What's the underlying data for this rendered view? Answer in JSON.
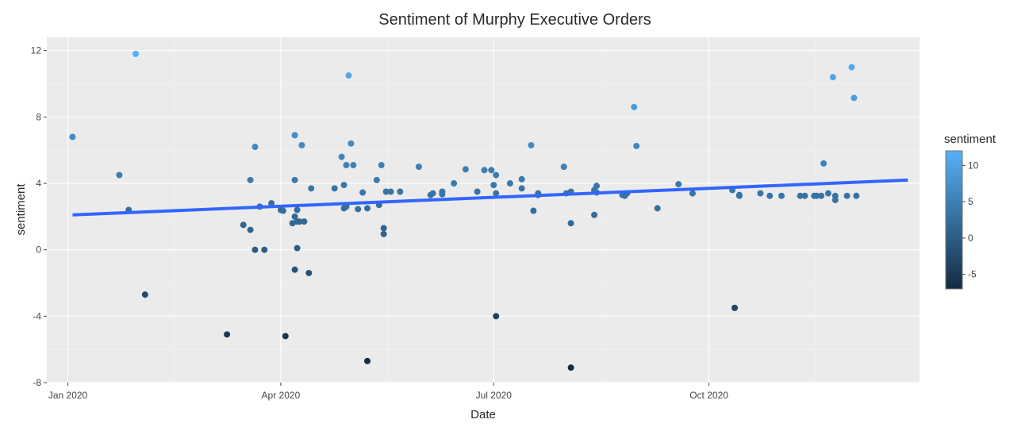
{
  "chart_data": {
    "type": "scatter",
    "title": "Sentiment of Murphy Executive Orders",
    "xlabel": "Date",
    "ylabel": "sentiment",
    "x_ticks": [
      {
        "date": "2020-01-01",
        "label": "Jan 2020"
      },
      {
        "date": "2020-04-01",
        "label": "Apr 2020"
      },
      {
        "date": "2020-07-01",
        "label": "Jul 2020"
      },
      {
        "date": "2020-10-01",
        "label": "Oct 2020"
      }
    ],
    "xlim": [
      "2019-12-23",
      "2020-12-30"
    ],
    "y_ticks": [
      12,
      8,
      4,
      0,
      -4,
      -8
    ],
    "ylim": [
      -8,
      12.8
    ],
    "grid": true,
    "colorbar": {
      "title": "sentiment",
      "ticks": [
        10,
        5,
        0,
        -5
      ],
      "range": [
        -7,
        12
      ],
      "color_low": "#132b43",
      "color_high": "#56b1f7"
    },
    "trend_line": {
      "color": "#3366ff",
      "start": {
        "date": "2020-01-03",
        "value": 2.1
      },
      "end": {
        "date": "2020-12-25",
        "value": 4.2
      }
    },
    "points": [
      {
        "date": "2020-01-03",
        "value": 6.8
      },
      {
        "date": "2020-01-23",
        "value": 4.5
      },
      {
        "date": "2020-01-27",
        "value": 2.4
      },
      {
        "date": "2020-01-30",
        "value": 11.8
      },
      {
        "date": "2020-02-03",
        "value": -2.7
      },
      {
        "date": "2020-03-09",
        "value": -5.1
      },
      {
        "date": "2020-03-16",
        "value": 1.5
      },
      {
        "date": "2020-03-19",
        "value": 1.2
      },
      {
        "date": "2020-03-19",
        "value": 4.2
      },
      {
        "date": "2020-03-21",
        "value": 6.2
      },
      {
        "date": "2020-03-21",
        "value": 0.0
      },
      {
        "date": "2020-03-23",
        "value": 2.6
      },
      {
        "date": "2020-03-25",
        "value": 0.0
      },
      {
        "date": "2020-03-28",
        "value": 2.8
      },
      {
        "date": "2020-04-01",
        "value": 2.4
      },
      {
        "date": "2020-04-02",
        "value": 2.35
      },
      {
        "date": "2020-04-03",
        "value": -5.2
      },
      {
        "date": "2020-04-06",
        "value": 1.6
      },
      {
        "date": "2020-04-07",
        "value": 6.9
      },
      {
        "date": "2020-04-07",
        "value": 4.2
      },
      {
        "date": "2020-04-07",
        "value": 2.0
      },
      {
        "date": "2020-04-07",
        "value": -1.2
      },
      {
        "date": "2020-04-08",
        "value": 2.4
      },
      {
        "date": "2020-04-08",
        "value": 1.7
      },
      {
        "date": "2020-04-08",
        "value": 0.1
      },
      {
        "date": "2020-04-09",
        "value": 1.7
      },
      {
        "date": "2020-04-10",
        "value": 6.3
      },
      {
        "date": "2020-04-11",
        "value": 1.7
      },
      {
        "date": "2020-04-13",
        "value": -1.4
      },
      {
        "date": "2020-04-14",
        "value": 3.7
      },
      {
        "date": "2020-04-24",
        "value": 3.7
      },
      {
        "date": "2020-04-27",
        "value": 5.6
      },
      {
        "date": "2020-04-28",
        "value": 3.9
      },
      {
        "date": "2020-04-28",
        "value": 2.5
      },
      {
        "date": "2020-04-29",
        "value": 5.1
      },
      {
        "date": "2020-04-29",
        "value": 2.6
      },
      {
        "date": "2020-04-30",
        "value": 10.5
      },
      {
        "date": "2020-05-01",
        "value": 6.4
      },
      {
        "date": "2020-05-02",
        "value": 5.1
      },
      {
        "date": "2020-05-04",
        "value": 2.45
      },
      {
        "date": "2020-05-06",
        "value": 3.45
      },
      {
        "date": "2020-05-08",
        "value": 2.5
      },
      {
        "date": "2020-05-08",
        "value": -6.7
      },
      {
        "date": "2020-05-12",
        "value": 4.2
      },
      {
        "date": "2020-05-13",
        "value": 2.7
      },
      {
        "date": "2020-05-14",
        "value": 5.1
      },
      {
        "date": "2020-05-15",
        "value": 1.3
      },
      {
        "date": "2020-05-15",
        "value": 0.95
      },
      {
        "date": "2020-05-16",
        "value": 3.5
      },
      {
        "date": "2020-05-18",
        "value": 3.5
      },
      {
        "date": "2020-05-22",
        "value": 3.5
      },
      {
        "date": "2020-05-30",
        "value": 5.0
      },
      {
        "date": "2020-06-04",
        "value": 3.3
      },
      {
        "date": "2020-06-05",
        "value": 3.4
      },
      {
        "date": "2020-06-09",
        "value": 3.5
      },
      {
        "date": "2020-06-09",
        "value": 3.35
      },
      {
        "date": "2020-06-14",
        "value": 4.0
      },
      {
        "date": "2020-06-19",
        "value": 4.85
      },
      {
        "date": "2020-06-24",
        "value": 3.5
      },
      {
        "date": "2020-06-27",
        "value": 4.8
      },
      {
        "date": "2020-06-30",
        "value": 4.8
      },
      {
        "date": "2020-07-01",
        "value": 3.9
      },
      {
        "date": "2020-07-02",
        "value": 4.5
      },
      {
        "date": "2020-07-02",
        "value": 3.4
      },
      {
        "date": "2020-07-02",
        "value": -4.0
      },
      {
        "date": "2020-07-08",
        "value": 4.0
      },
      {
        "date": "2020-07-13",
        "value": 4.25
      },
      {
        "date": "2020-07-13",
        "value": 3.7
      },
      {
        "date": "2020-07-17",
        "value": 6.3
      },
      {
        "date": "2020-07-18",
        "value": 2.35
      },
      {
        "date": "2020-07-20",
        "value": 3.4
      },
      {
        "date": "2020-07-20",
        "value": 3.3
      },
      {
        "date": "2020-07-31",
        "value": 5.0
      },
      {
        "date": "2020-08-01",
        "value": 3.4
      },
      {
        "date": "2020-08-03",
        "value": 3.5
      },
      {
        "date": "2020-08-03",
        "value": 1.6
      },
      {
        "date": "2020-08-03",
        "value": -7.1
      },
      {
        "date": "2020-08-13",
        "value": 3.6
      },
      {
        "date": "2020-08-13",
        "value": 2.1
      },
      {
        "date": "2020-08-14",
        "value": 3.85
      },
      {
        "date": "2020-08-14",
        "value": 3.45
      },
      {
        "date": "2020-08-25",
        "value": 3.3
      },
      {
        "date": "2020-08-26",
        "value": 3.25
      },
      {
        "date": "2020-08-27",
        "value": 3.4
      },
      {
        "date": "2020-08-30",
        "value": 8.6
      },
      {
        "date": "2020-08-31",
        "value": 6.25
      },
      {
        "date": "2020-09-09",
        "value": 2.5
      },
      {
        "date": "2020-09-18",
        "value": 3.95
      },
      {
        "date": "2020-09-24",
        "value": 3.4
      },
      {
        "date": "2020-10-11",
        "value": 3.6
      },
      {
        "date": "2020-10-12",
        "value": -3.5
      },
      {
        "date": "2020-10-14",
        "value": 3.3
      },
      {
        "date": "2020-10-14",
        "value": 3.25
      },
      {
        "date": "2020-10-23",
        "value": 3.4
      },
      {
        "date": "2020-10-27",
        "value": 3.25
      },
      {
        "date": "2020-11-01",
        "value": 3.25
      },
      {
        "date": "2020-11-09",
        "value": 3.25
      },
      {
        "date": "2020-11-11",
        "value": 3.25
      },
      {
        "date": "2020-11-15",
        "value": 3.25
      },
      {
        "date": "2020-11-16",
        "value": 3.25
      },
      {
        "date": "2020-11-18",
        "value": 3.25
      },
      {
        "date": "2020-11-19",
        "value": 5.2
      },
      {
        "date": "2020-11-21",
        "value": 3.4
      },
      {
        "date": "2020-11-23",
        "value": 10.4
      },
      {
        "date": "2020-11-24",
        "value": 3.25
      },
      {
        "date": "2020-11-24",
        "value": 3.0
      },
      {
        "date": "2020-11-29",
        "value": 3.25
      },
      {
        "date": "2020-12-01",
        "value": 11.0
      },
      {
        "date": "2020-12-02",
        "value": 9.15
      },
      {
        "date": "2020-12-03",
        "value": 3.25
      }
    ]
  }
}
